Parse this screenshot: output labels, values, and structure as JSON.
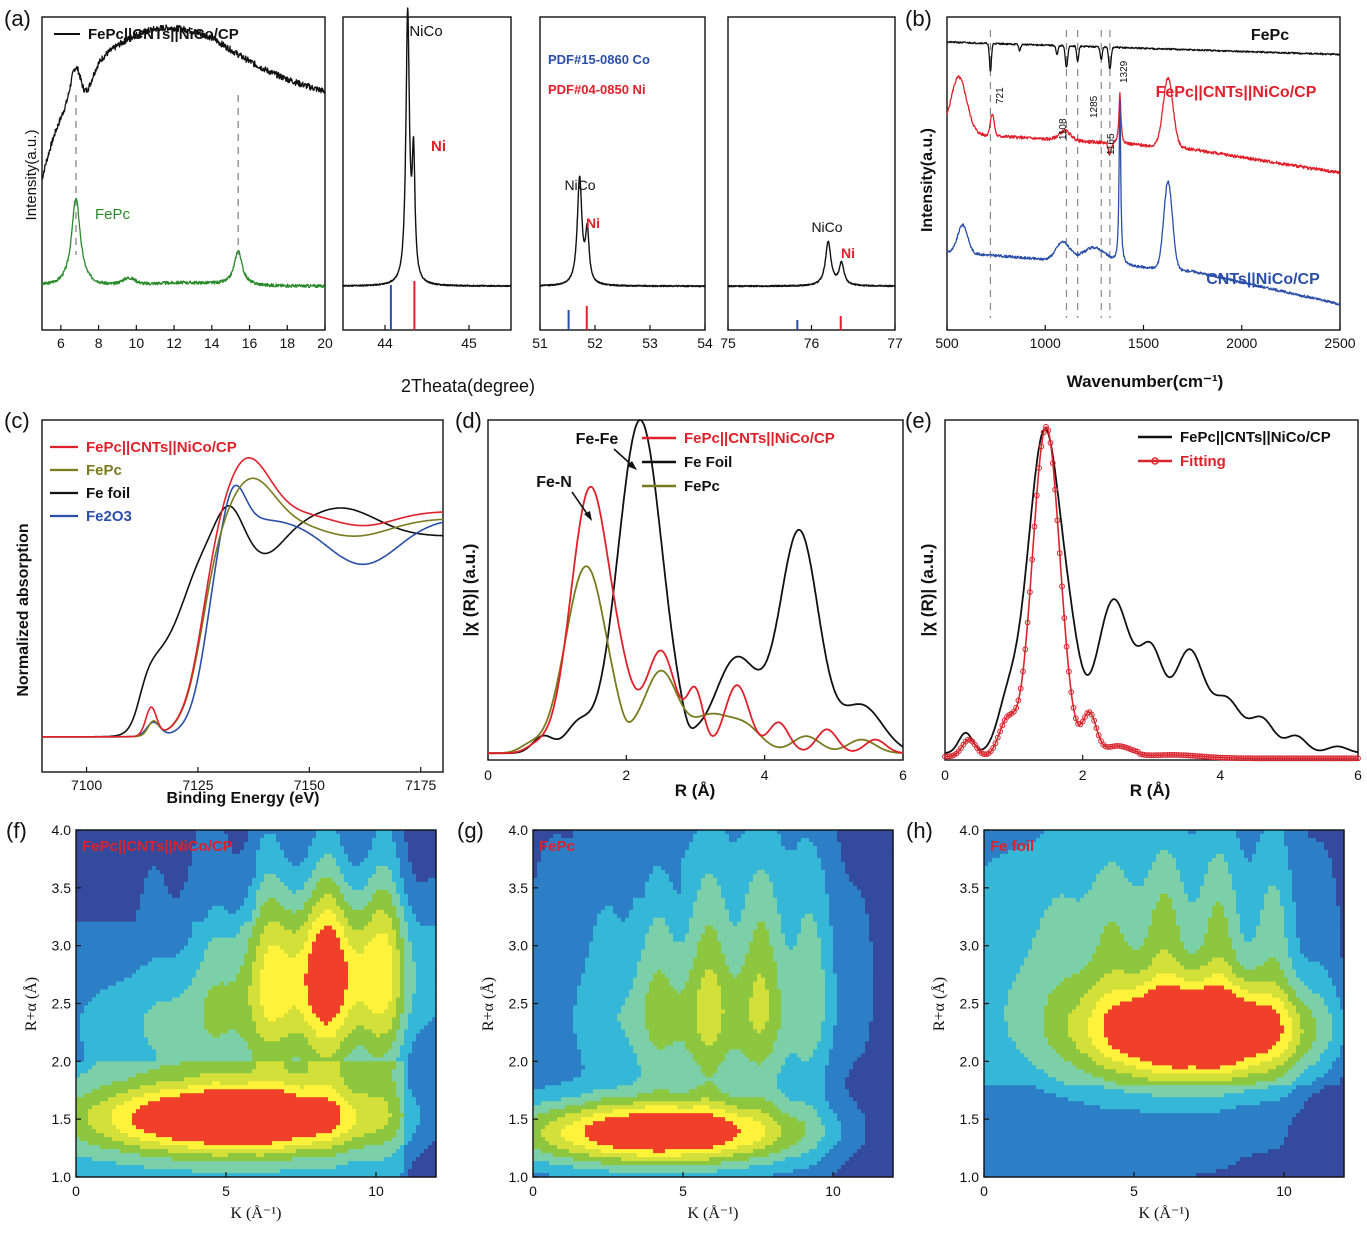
{
  "chart_data": [
    {
      "panel_label": "(a)",
      "type": "line",
      "title": "",
      "xlabel": "2Theata(degree)",
      "ylabel": "Intensity(a.u.)",
      "subplots": [
        {
          "xlim": [
            5,
            20
          ],
          "xticks": [
            6,
            8,
            10,
            12,
            14,
            16,
            18,
            20
          ],
          "legend": [
            "FePc||CNTs||NiCo/CP"
          ],
          "annotations": [
            "FePc"
          ],
          "dashed_x": [
            6.8,
            15.4
          ]
        },
        {
          "xlim": [
            43.5,
            45.5
          ],
          "xticks": [
            44,
            45
          ],
          "annotations": [
            "NiCo",
            "Ni"
          ],
          "peaks": [
            44.3,
            44.5
          ]
        },
        {
          "xlim": [
            51,
            54
          ],
          "xticks": [
            51,
            52,
            53,
            54
          ],
          "annotations": [
            "PDF#15-0860 Co",
            "PDF#04-0850 Ni",
            "NiCo",
            "Ni"
          ],
          "peaks": [
            51.7,
            51.85
          ]
        },
        {
          "xlim": [
            75,
            77
          ],
          "xticks": [
            75,
            76,
            77
          ],
          "annotations": [
            "NiCo",
            "Ni"
          ],
          "peaks": [
            76.2,
            76.4
          ]
        }
      ]
    },
    {
      "panel_label": "(b)",
      "type": "line",
      "xlabel": "Wavenumber(cm⁻¹)",
      "ylabel": "Intensity(a.u.)",
      "xlim": [
        500,
        2500
      ],
      "xticks": [
        500,
        1000,
        1500,
        2000,
        2500
      ],
      "series": [
        {
          "name": "FePc"
        },
        {
          "name": "FePc||CNTs||NiCo/CP"
        },
        {
          "name": "CNTs||NiCo/CP"
        }
      ],
      "marked_peaks": [
        721,
        1108,
        1165,
        1285,
        1329
      ]
    },
    {
      "panel_label": "(c)",
      "type": "line",
      "xlabel": "Binding Energy (eV)",
      "ylabel": "Normalized absorption",
      "xlim": [
        7090,
        7180
      ],
      "xticks": [
        7100,
        7125,
        7150,
        7175
      ],
      "series": [
        {
          "name": "FePc||CNTs||NiCo/CP"
        },
        {
          "name": "FePc"
        },
        {
          "name": "Fe foil"
        },
        {
          "name": "Fe2O3"
        }
      ]
    },
    {
      "panel_label": "(d)",
      "type": "line",
      "xlabel": "R (Å)",
      "ylabel": "|χ (R)| (a.u.)",
      "xlim": [
        0,
        6
      ],
      "xticks": [
        0,
        2,
        4,
        6
      ],
      "series": [
        {
          "name": "FePc||CNTs||NiCo/CP"
        },
        {
          "name": "Fe Foil"
        },
        {
          "name": "FePc"
        }
      ],
      "annotations": [
        "Fe-Fe",
        "Fe-N"
      ]
    },
    {
      "panel_label": "(e)",
      "type": "line",
      "xlabel": "R (Å)",
      "ylabel": "|χ (R)| (a.u.)",
      "xlim": [
        0,
        6
      ],
      "xticks": [
        0,
        2,
        4,
        6
      ],
      "series": [
        {
          "name": "FePc||CNTs||NiCo/CP"
        },
        {
          "name": "Fitting"
        }
      ]
    },
    {
      "panel_label": "(f)",
      "type": "heatmap",
      "title": "FePc||CNTs||NiCo/CP",
      "xlabel": "K (Å⁻¹)",
      "ylabel": "R+α (Å)",
      "xlim": [
        0,
        12
      ],
      "ylim": [
        1.0,
        4.0
      ],
      "xticks": [
        0,
        5,
        10
      ],
      "yticks": [
        1.0,
        1.5,
        2.0,
        2.5,
        3.0,
        3.5,
        4.0
      ],
      "maxima": [
        {
          "k": 5.5,
          "r": 1.5
        },
        {
          "k": 8.5,
          "r": 2.7
        }
      ]
    },
    {
      "panel_label": "(g)",
      "type": "heatmap",
      "title": "FePc",
      "xlabel": "K (Å⁻¹)",
      "ylabel": "R+α (Å)",
      "xlim": [
        0,
        12
      ],
      "ylim": [
        1.0,
        4.0
      ],
      "xticks": [
        0,
        5,
        10
      ],
      "yticks": [
        1.0,
        1.5,
        2.0,
        2.5,
        3.0,
        3.5,
        4.0
      ],
      "maxima": [
        {
          "k": 4.3,
          "r": 1.38
        }
      ]
    },
    {
      "panel_label": "(h)",
      "type": "heatmap",
      "title": "Fe foil",
      "xlabel": "K (Å⁻¹)",
      "ylabel": "R+α (Å)",
      "xlim": [
        0,
        12
      ],
      "ylim": [
        1.0,
        4.0
      ],
      "xticks": [
        0,
        5,
        10
      ],
      "yticks": [
        1.0,
        1.5,
        2.0,
        2.5,
        3.0,
        3.5,
        4.0
      ],
      "maxima": [
        {
          "k": 7.3,
          "r": 2.25
        }
      ]
    }
  ],
  "colors": {
    "black": "#111111",
    "green": "#2a8a2a",
    "red": "#e0202a",
    "blue": "#2b4fa8",
    "olive": "#7a7a1e",
    "fit": "#d8262f",
    "heat": [
      "#344a9c",
      "#2c7fc7",
      "#35b7d8",
      "#7bd0a8",
      "#8dc63f",
      "#d3e03a",
      "#fff23a",
      "#f0402a"
    ]
  }
}
